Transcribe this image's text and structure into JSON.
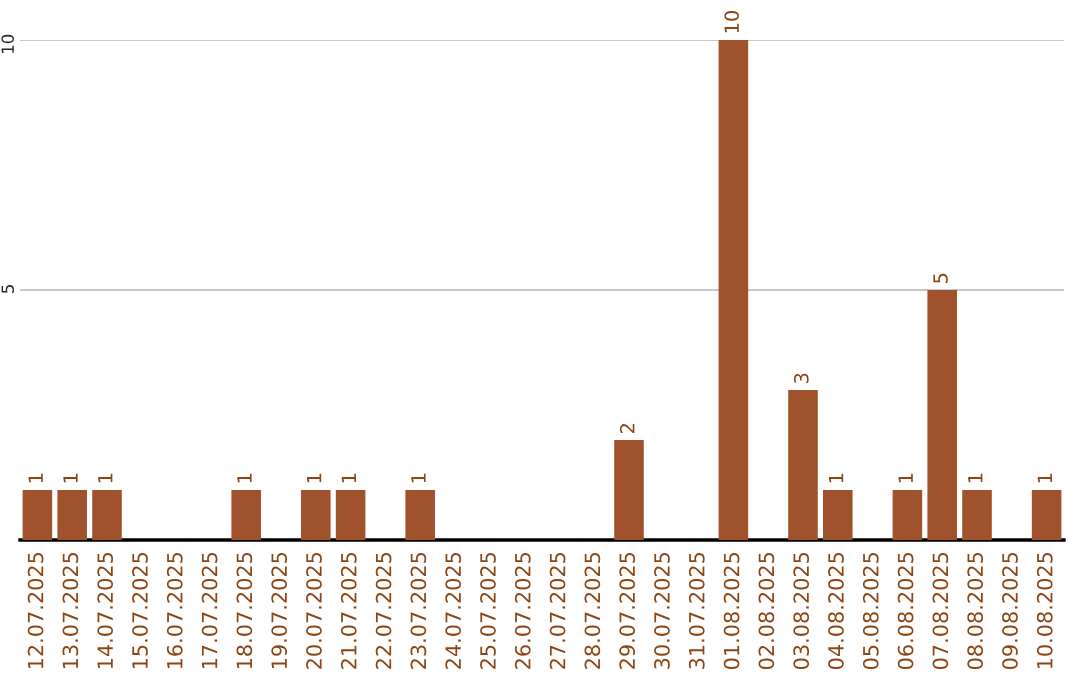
{
  "chart_data": {
    "type": "bar",
    "categories": [
      "12.07.2025",
      "13.07.2025",
      "14.07.2025",
      "15.07.2025",
      "16.07.2025",
      "17.07.2025",
      "18.07.2025",
      "19.07.2025",
      "20.07.2025",
      "21.07.2025",
      "22.07.2025",
      "23.07.2025",
      "24.07.2025",
      "25.07.2025",
      "26.07.2025",
      "27.07.2025",
      "28.07.2025",
      "29.07.2025",
      "30.07.2025",
      "31.07.2025",
      "01.08.2025",
      "02.08.2025",
      "03.08.2025",
      "04.08.2025",
      "05.08.2025",
      "06.08.2025",
      "07.08.2025",
      "08.08.2025",
      "09.08.2025",
      "10.08.2025"
    ],
    "values": [
      1,
      1,
      1,
      null,
      null,
      null,
      1,
      null,
      1,
      1,
      null,
      1,
      null,
      null,
      null,
      null,
      null,
      2,
      null,
      null,
      10,
      null,
      3,
      1,
      null,
      1,
      5,
      1,
      null,
      1
    ],
    "value_labels": [
      "1",
      "1",
      "1",
      null,
      null,
      null,
      "1",
      null,
      "1",
      "1",
      null,
      "1",
      null,
      null,
      null,
      null,
      null,
      "2",
      null,
      null,
      "10",
      null,
      "3",
      "1",
      null,
      "1",
      "5",
      "1",
      null,
      "1"
    ],
    "color": "#a0522d",
    "ylim": [
      0,
      10
    ],
    "yticks": [
      5,
      10
    ],
    "grid": "y"
  }
}
